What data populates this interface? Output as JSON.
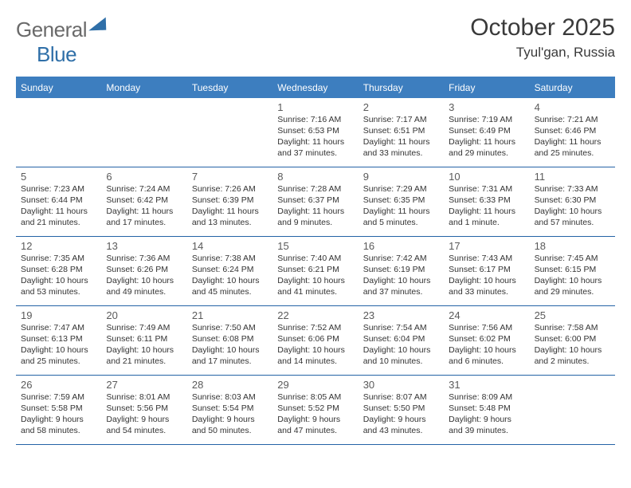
{
  "logo": {
    "text_gray": "General",
    "text_blue": "Blue"
  },
  "header": {
    "month_title": "October 2025",
    "location": "Tyul'gan, Russia"
  },
  "colors": {
    "header_bar": "#3d7ebf",
    "header_text": "#ffffff",
    "week_divider": "#2463a6",
    "body_text": "#333333",
    "daynum_text": "#5a5a5a",
    "logo_gray": "#6a6a6a",
    "logo_blue": "#2f6fa8",
    "background": "#ffffff"
  },
  "weekdays": [
    "Sunday",
    "Monday",
    "Tuesday",
    "Wednesday",
    "Thursday",
    "Friday",
    "Saturday"
  ],
  "weeks": [
    [
      null,
      null,
      null,
      {
        "n": "1",
        "sr": "Sunrise: 7:16 AM",
        "ss": "Sunset: 6:53 PM",
        "d1": "Daylight: 11 hours",
        "d2": "and 37 minutes."
      },
      {
        "n": "2",
        "sr": "Sunrise: 7:17 AM",
        "ss": "Sunset: 6:51 PM",
        "d1": "Daylight: 11 hours",
        "d2": "and 33 minutes."
      },
      {
        "n": "3",
        "sr": "Sunrise: 7:19 AM",
        "ss": "Sunset: 6:49 PM",
        "d1": "Daylight: 11 hours",
        "d2": "and 29 minutes."
      },
      {
        "n": "4",
        "sr": "Sunrise: 7:21 AM",
        "ss": "Sunset: 6:46 PM",
        "d1": "Daylight: 11 hours",
        "d2": "and 25 minutes."
      }
    ],
    [
      {
        "n": "5",
        "sr": "Sunrise: 7:23 AM",
        "ss": "Sunset: 6:44 PM",
        "d1": "Daylight: 11 hours",
        "d2": "and 21 minutes."
      },
      {
        "n": "6",
        "sr": "Sunrise: 7:24 AM",
        "ss": "Sunset: 6:42 PM",
        "d1": "Daylight: 11 hours",
        "d2": "and 17 minutes."
      },
      {
        "n": "7",
        "sr": "Sunrise: 7:26 AM",
        "ss": "Sunset: 6:39 PM",
        "d1": "Daylight: 11 hours",
        "d2": "and 13 minutes."
      },
      {
        "n": "8",
        "sr": "Sunrise: 7:28 AM",
        "ss": "Sunset: 6:37 PM",
        "d1": "Daylight: 11 hours",
        "d2": "and 9 minutes."
      },
      {
        "n": "9",
        "sr": "Sunrise: 7:29 AM",
        "ss": "Sunset: 6:35 PM",
        "d1": "Daylight: 11 hours",
        "d2": "and 5 minutes."
      },
      {
        "n": "10",
        "sr": "Sunrise: 7:31 AM",
        "ss": "Sunset: 6:33 PM",
        "d1": "Daylight: 11 hours",
        "d2": "and 1 minute."
      },
      {
        "n": "11",
        "sr": "Sunrise: 7:33 AM",
        "ss": "Sunset: 6:30 PM",
        "d1": "Daylight: 10 hours",
        "d2": "and 57 minutes."
      }
    ],
    [
      {
        "n": "12",
        "sr": "Sunrise: 7:35 AM",
        "ss": "Sunset: 6:28 PM",
        "d1": "Daylight: 10 hours",
        "d2": "and 53 minutes."
      },
      {
        "n": "13",
        "sr": "Sunrise: 7:36 AM",
        "ss": "Sunset: 6:26 PM",
        "d1": "Daylight: 10 hours",
        "d2": "and 49 minutes."
      },
      {
        "n": "14",
        "sr": "Sunrise: 7:38 AM",
        "ss": "Sunset: 6:24 PM",
        "d1": "Daylight: 10 hours",
        "d2": "and 45 minutes."
      },
      {
        "n": "15",
        "sr": "Sunrise: 7:40 AM",
        "ss": "Sunset: 6:21 PM",
        "d1": "Daylight: 10 hours",
        "d2": "and 41 minutes."
      },
      {
        "n": "16",
        "sr": "Sunrise: 7:42 AM",
        "ss": "Sunset: 6:19 PM",
        "d1": "Daylight: 10 hours",
        "d2": "and 37 minutes."
      },
      {
        "n": "17",
        "sr": "Sunrise: 7:43 AM",
        "ss": "Sunset: 6:17 PM",
        "d1": "Daylight: 10 hours",
        "d2": "and 33 minutes."
      },
      {
        "n": "18",
        "sr": "Sunrise: 7:45 AM",
        "ss": "Sunset: 6:15 PM",
        "d1": "Daylight: 10 hours",
        "d2": "and 29 minutes."
      }
    ],
    [
      {
        "n": "19",
        "sr": "Sunrise: 7:47 AM",
        "ss": "Sunset: 6:13 PM",
        "d1": "Daylight: 10 hours",
        "d2": "and 25 minutes."
      },
      {
        "n": "20",
        "sr": "Sunrise: 7:49 AM",
        "ss": "Sunset: 6:11 PM",
        "d1": "Daylight: 10 hours",
        "d2": "and 21 minutes."
      },
      {
        "n": "21",
        "sr": "Sunrise: 7:50 AM",
        "ss": "Sunset: 6:08 PM",
        "d1": "Daylight: 10 hours",
        "d2": "and 17 minutes."
      },
      {
        "n": "22",
        "sr": "Sunrise: 7:52 AM",
        "ss": "Sunset: 6:06 PM",
        "d1": "Daylight: 10 hours",
        "d2": "and 14 minutes."
      },
      {
        "n": "23",
        "sr": "Sunrise: 7:54 AM",
        "ss": "Sunset: 6:04 PM",
        "d1": "Daylight: 10 hours",
        "d2": "and 10 minutes."
      },
      {
        "n": "24",
        "sr": "Sunrise: 7:56 AM",
        "ss": "Sunset: 6:02 PM",
        "d1": "Daylight: 10 hours",
        "d2": "and 6 minutes."
      },
      {
        "n": "25",
        "sr": "Sunrise: 7:58 AM",
        "ss": "Sunset: 6:00 PM",
        "d1": "Daylight: 10 hours",
        "d2": "and 2 minutes."
      }
    ],
    [
      {
        "n": "26",
        "sr": "Sunrise: 7:59 AM",
        "ss": "Sunset: 5:58 PM",
        "d1": "Daylight: 9 hours",
        "d2": "and 58 minutes."
      },
      {
        "n": "27",
        "sr": "Sunrise: 8:01 AM",
        "ss": "Sunset: 5:56 PM",
        "d1": "Daylight: 9 hours",
        "d2": "and 54 minutes."
      },
      {
        "n": "28",
        "sr": "Sunrise: 8:03 AM",
        "ss": "Sunset: 5:54 PM",
        "d1": "Daylight: 9 hours",
        "d2": "and 50 minutes."
      },
      {
        "n": "29",
        "sr": "Sunrise: 8:05 AM",
        "ss": "Sunset: 5:52 PM",
        "d1": "Daylight: 9 hours",
        "d2": "and 47 minutes."
      },
      {
        "n": "30",
        "sr": "Sunrise: 8:07 AM",
        "ss": "Sunset: 5:50 PM",
        "d1": "Daylight: 9 hours",
        "d2": "and 43 minutes."
      },
      {
        "n": "31",
        "sr": "Sunrise: 8:09 AM",
        "ss": "Sunset: 5:48 PM",
        "d1": "Daylight: 9 hours",
        "d2": "and 39 minutes."
      },
      null
    ]
  ]
}
